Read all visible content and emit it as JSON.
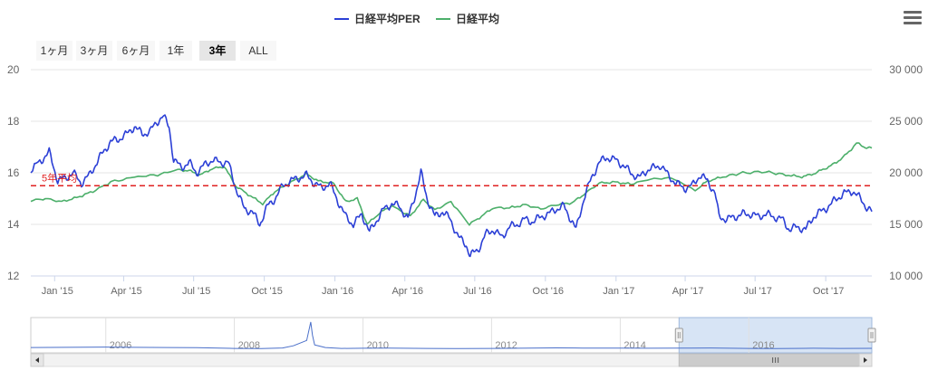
{
  "range_selector": {
    "buttons": [
      {
        "label": "1ヶ月",
        "active": false
      },
      {
        "label": "3ヶ月",
        "active": false
      },
      {
        "label": "6ヶ月",
        "active": false
      },
      {
        "label": "1年",
        "active": false
      },
      {
        "label": "3年",
        "active": true
      },
      {
        "label": "ALL",
        "active": false
      }
    ]
  },
  "colors": {
    "per": "#2b3fd6",
    "nikkei": "#4caf6a",
    "plot_line": "#e02020",
    "navigator_mask": "#d7e4f5"
  },
  "chart_data": {
    "type": "line",
    "title": "",
    "x_tick_labels": [
      "Jan '15",
      "Apr '15",
      "Jul '15",
      "Oct '15",
      "Jan '16",
      "Apr '16",
      "Jul '16",
      "Oct '16",
      "Jan '17",
      "Apr '17",
      "Jul '17",
      "Oct '17"
    ],
    "x_range": [
      "2014-12-01",
      "2017-11-30"
    ],
    "y_left": {
      "ticks": [
        "12",
        "14",
        "16",
        "18",
        "20"
      ],
      "min": 12,
      "max": 20
    },
    "y_right": {
      "ticks": [
        "10 000",
        "15 000",
        "20 000",
        "25 000",
        "30 000"
      ],
      "min": 10000,
      "max": 30000
    },
    "plot_line": {
      "label": "5年平均",
      "value": 15.5
    },
    "legend_placement": "top-center",
    "series": [
      {
        "name": "日経平均PER",
        "axis": "left",
        "points": [
          [
            "2014-12-01",
            16.1
          ],
          [
            "2014-12-15",
            16.5
          ],
          [
            "2014-12-25",
            16.8
          ],
          [
            "2015-01-05",
            15.7
          ],
          [
            "2015-01-15",
            15.8
          ],
          [
            "2015-01-25",
            16.0
          ],
          [
            "2015-02-05",
            15.6
          ],
          [
            "2015-02-15",
            15.9
          ],
          [
            "2015-02-25",
            16.4
          ],
          [
            "2015-03-05",
            16.8
          ],
          [
            "2015-03-15",
            17.2
          ],
          [
            "2015-03-25",
            17.3
          ],
          [
            "2015-04-05",
            17.5
          ],
          [
            "2015-04-15",
            17.8
          ],
          [
            "2015-04-25",
            17.5
          ],
          [
            "2015-05-05",
            17.6
          ],
          [
            "2015-05-15",
            18.0
          ],
          [
            "2015-05-22",
            18.2
          ],
          [
            "2015-05-30",
            17.8
          ],
          [
            "2015-06-05",
            16.5
          ],
          [
            "2015-06-15",
            16.2
          ],
          [
            "2015-06-25",
            16.4
          ],
          [
            "2015-07-05",
            16.0
          ],
          [
            "2015-07-15",
            16.3
          ],
          [
            "2015-07-25",
            16.5
          ],
          [
            "2015-08-05",
            16.4
          ],
          [
            "2015-08-15",
            16.4
          ],
          [
            "2015-08-25",
            15.4
          ],
          [
            "2015-09-05",
            14.6
          ],
          [
            "2015-09-15",
            14.5
          ],
          [
            "2015-09-25",
            14.0
          ],
          [
            "2015-10-05",
            14.7
          ],
          [
            "2015-10-15",
            15.0
          ],
          [
            "2015-10-25",
            15.5
          ],
          [
            "2015-11-05",
            15.7
          ],
          [
            "2015-11-15",
            15.8
          ],
          [
            "2015-11-25",
            15.9
          ],
          [
            "2015-12-05",
            15.6
          ],
          [
            "2015-12-15",
            15.4
          ],
          [
            "2015-12-25",
            15.6
          ],
          [
            "2016-01-05",
            14.9
          ],
          [
            "2016-01-15",
            14.3
          ],
          [
            "2016-01-25",
            14.0
          ],
          [
            "2016-02-05",
            14.4
          ],
          [
            "2016-02-15",
            13.7
          ],
          [
            "2016-02-25",
            14.2
          ],
          [
            "2016-03-05",
            14.6
          ],
          [
            "2016-03-15",
            14.8
          ],
          [
            "2016-03-25",
            14.7
          ],
          [
            "2016-04-05",
            14.2
          ],
          [
            "2016-04-15",
            15.2
          ],
          [
            "2016-04-22",
            16.0
          ],
          [
            "2016-04-30",
            15.0
          ],
          [
            "2016-05-10",
            14.3
          ],
          [
            "2016-05-20",
            14.5
          ],
          [
            "2016-05-30",
            14.2
          ],
          [
            "2016-06-10",
            13.5
          ],
          [
            "2016-06-20",
            13.2
          ],
          [
            "2016-06-25",
            12.8
          ],
          [
            "2016-07-05",
            13.0
          ],
          [
            "2016-07-15",
            13.6
          ],
          [
            "2016-07-25",
            13.8
          ],
          [
            "2016-08-05",
            13.5
          ],
          [
            "2016-08-15",
            13.9
          ],
          [
            "2016-08-25",
            14.0
          ],
          [
            "2016-09-05",
            14.2
          ],
          [
            "2016-09-15",
            14.1
          ],
          [
            "2016-09-25",
            14.3
          ],
          [
            "2016-10-05",
            14.4
          ],
          [
            "2016-10-15",
            14.6
          ],
          [
            "2016-10-25",
            14.7
          ],
          [
            "2016-11-05",
            14.1
          ],
          [
            "2016-11-10",
            13.8
          ],
          [
            "2016-11-20",
            15.0
          ],
          [
            "2016-11-30",
            15.8
          ],
          [
            "2016-12-10",
            16.4
          ],
          [
            "2016-12-20",
            16.6
          ],
          [
            "2016-12-31",
            16.5
          ],
          [
            "2017-01-10",
            16.3
          ],
          [
            "2017-01-20",
            16.0
          ],
          [
            "2017-01-31",
            15.8
          ],
          [
            "2017-02-10",
            16.1
          ],
          [
            "2017-02-20",
            16.2
          ],
          [
            "2017-02-28",
            16.3
          ],
          [
            "2017-03-10",
            15.9
          ],
          [
            "2017-03-20",
            15.6
          ],
          [
            "2017-03-31",
            15.4
          ],
          [
            "2017-04-10",
            15.5
          ],
          [
            "2017-04-20",
            15.9
          ],
          [
            "2017-04-30",
            15.7
          ],
          [
            "2017-05-10",
            15.2
          ],
          [
            "2017-05-15",
            14.3
          ],
          [
            "2017-05-25",
            14.2
          ],
          [
            "2017-06-05",
            14.3
          ],
          [
            "2017-06-15",
            14.4
          ],
          [
            "2017-06-25",
            14.4
          ],
          [
            "2017-07-05",
            14.3
          ],
          [
            "2017-07-15",
            14.4
          ],
          [
            "2017-07-25",
            14.3
          ],
          [
            "2017-08-05",
            14.2
          ],
          [
            "2017-08-15",
            13.8
          ],
          [
            "2017-08-25",
            13.9
          ],
          [
            "2017-09-05",
            13.8
          ],
          [
            "2017-09-15",
            14.3
          ],
          [
            "2017-09-25",
            14.5
          ],
          [
            "2017-10-05",
            14.7
          ],
          [
            "2017-10-15",
            15.0
          ],
          [
            "2017-10-25",
            15.2
          ],
          [
            "2017-11-05",
            15.3
          ],
          [
            "2017-11-15",
            15.0
          ],
          [
            "2017-11-25",
            14.6
          ],
          [
            "2017-11-30",
            14.5
          ]
        ]
      },
      {
        "name": "日経平均",
        "axis": "right",
        "points": [
          [
            "2014-12-01",
            17300
          ],
          [
            "2014-12-20",
            17500
          ],
          [
            "2015-01-10",
            17200
          ],
          [
            "2015-01-30",
            17600
          ],
          [
            "2015-02-20",
            18200
          ],
          [
            "2015-03-15",
            19100
          ],
          [
            "2015-04-15",
            19600
          ],
          [
            "2015-05-15",
            19800
          ],
          [
            "2015-06-10",
            20300
          ],
          [
            "2015-06-25",
            20200
          ],
          [
            "2015-07-10",
            19800
          ],
          [
            "2015-07-25",
            20400
          ],
          [
            "2015-08-10",
            20600
          ],
          [
            "2015-08-25",
            18700
          ],
          [
            "2015-09-10",
            17900
          ],
          [
            "2015-09-29",
            17000
          ],
          [
            "2015-10-15",
            18200
          ],
          [
            "2015-11-05",
            19100
          ],
          [
            "2015-11-25",
            19900
          ],
          [
            "2015-12-10",
            19200
          ],
          [
            "2015-12-30",
            19000
          ],
          [
            "2016-01-15",
            17200
          ],
          [
            "2016-01-30",
            17500
          ],
          [
            "2016-02-12",
            15000
          ],
          [
            "2016-02-28",
            16100
          ],
          [
            "2016-03-15",
            16800
          ],
          [
            "2016-04-08",
            15800
          ],
          [
            "2016-04-25",
            17400
          ],
          [
            "2016-05-10",
            16400
          ],
          [
            "2016-05-31",
            17200
          ],
          [
            "2016-06-24",
            15000
          ],
          [
            "2016-07-10",
            15800
          ],
          [
            "2016-07-25",
            16600
          ],
          [
            "2016-08-15",
            16600
          ],
          [
            "2016-09-05",
            16900
          ],
          [
            "2016-09-25",
            16500
          ],
          [
            "2016-10-15",
            16900
          ],
          [
            "2016-11-05",
            17100
          ],
          [
            "2016-11-20",
            17900
          ],
          [
            "2016-12-10",
            19000
          ],
          [
            "2016-12-31",
            19100
          ],
          [
            "2017-01-20",
            18900
          ],
          [
            "2017-02-15",
            19400
          ],
          [
            "2017-03-15",
            19500
          ],
          [
            "2017-04-14",
            18300
          ],
          [
            "2017-04-30",
            19200
          ],
          [
            "2017-05-20",
            19600
          ],
          [
            "2017-06-15",
            20000
          ],
          [
            "2017-07-15",
            20100
          ],
          [
            "2017-08-10",
            19800
          ],
          [
            "2017-08-31",
            19600
          ],
          [
            "2017-09-15",
            19900
          ],
          [
            "2017-09-30",
            20400
          ],
          [
            "2017-10-15",
            21000
          ],
          [
            "2017-10-31",
            22000
          ],
          [
            "2017-11-10",
            22900
          ],
          [
            "2017-11-20",
            22500
          ],
          [
            "2017-11-30",
            22400
          ]
        ]
      }
    ]
  },
  "navigator": {
    "tick_labels": [
      "2006",
      "2008",
      "2010",
      "2012",
      "2014",
      "2016"
    ],
    "x_range": [
      "2004-11-01",
      "2017-11-30"
    ],
    "selected_range": [
      "2014-12-01",
      "2017-11-30"
    ],
    "points": [
      [
        "2004-11-01",
        40
      ],
      [
        "2005-06-01",
        42
      ],
      [
        "2006-01-01",
        45
      ],
      [
        "2006-06-01",
        42
      ],
      [
        "2007-01-01",
        40
      ],
      [
        "2007-06-01",
        38
      ],
      [
        "2008-01-01",
        30
      ],
      [
        "2008-06-01",
        28
      ],
      [
        "2008-10-01",
        35
      ],
      [
        "2008-12-01",
        60
      ],
      [
        "2009-02-15",
        120
      ],
      [
        "2009-03-10",
        330
      ],
      [
        "2009-03-20",
        180
      ],
      [
        "2009-04-01",
        70
      ],
      [
        "2009-06-01",
        40
      ],
      [
        "2009-09-01",
        30
      ],
      [
        "2010-01-01",
        32
      ],
      [
        "2010-06-01",
        34
      ],
      [
        "2011-01-01",
        30
      ],
      [
        "2011-06-01",
        28
      ],
      [
        "2012-01-01",
        30
      ],
      [
        "2012-06-01",
        32
      ],
      [
        "2013-01-01",
        36
      ],
      [
        "2013-06-01",
        34
      ],
      [
        "2014-01-01",
        33
      ],
      [
        "2014-06-01",
        32
      ],
      [
        "2015-01-01",
        33
      ],
      [
        "2015-06-01",
        35
      ],
      [
        "2016-01-01",
        30
      ],
      [
        "2016-06-01",
        28
      ],
      [
        "2017-01-01",
        32
      ],
      [
        "2017-06-01",
        30
      ],
      [
        "2017-11-30",
        31
      ]
    ],
    "scale_max": 360
  }
}
